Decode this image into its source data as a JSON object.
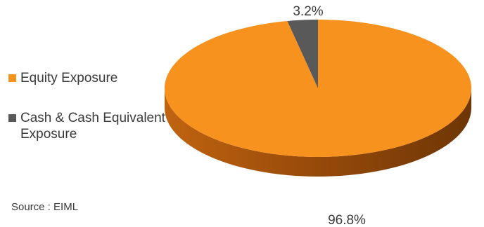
{
  "chart_data": {
    "type": "pie",
    "categories": [
      "Equity Exposure",
      "Cash & Cash Equivalent Exposure"
    ],
    "values": [
      96.8,
      3.2
    ],
    "data_labels": [
      "96.8%",
      "3.2%"
    ],
    "colors": [
      "#F7921E",
      "#595959"
    ],
    "style": "3d-tilted",
    "legend_position": "left"
  },
  "legend": {
    "items": [
      {
        "label": "Equity Exposure",
        "color": "#F7921E"
      },
      {
        "label": "Cash & Cash Equivalent Exposure",
        "color": "#595959"
      }
    ]
  },
  "source": "Source : EIML"
}
